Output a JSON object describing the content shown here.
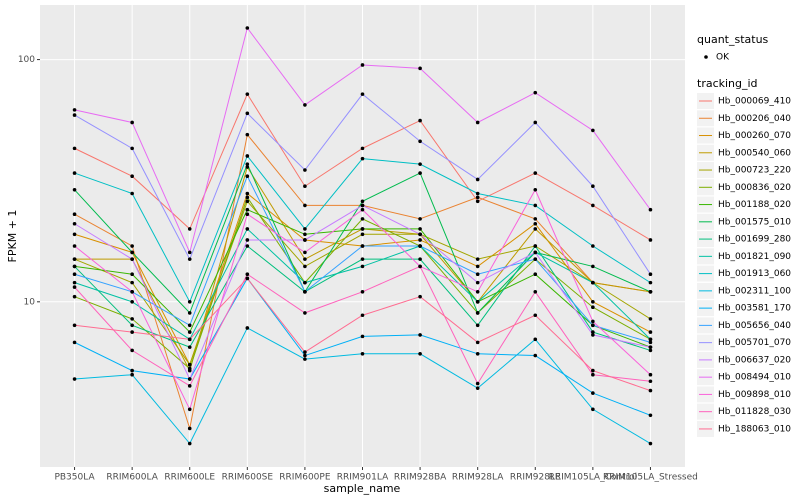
{
  "chart_data": {
    "type": "line",
    "x_label": "sample_name",
    "y_label": "FPKM + 1",
    "log_scale": true,
    "grid": true,
    "point_color": "#000000",
    "categories": [
      "PB350LA",
      "RRIM600LA",
      "RRIM600LE",
      "RRIM600SE",
      "RRIM600PE",
      "RRIM901LA",
      "RRIM928BA",
      "RRIM928LA",
      "RRIM928LE",
      "RRIM105LA_Control",
      "RRIM105LA_Stressed"
    ],
    "ylim": [
      2.08,
      168
    ],
    "yticks": [
      10,
      100
    ],
    "point_legend": {
      "title": "quant_status",
      "labels": [
        "OK"
      ]
    },
    "legend": {
      "title": "tracking_id",
      "position": "right"
    },
    "series": [
      {
        "name": "Hb_000069_410",
        "color": "#F8766D",
        "values": [
          43,
          33,
          20,
          72,
          30,
          43,
          56,
          26,
          34,
          25,
          18
        ]
      },
      {
        "name": "Hb_000206_040",
        "color": "#EA8331",
        "values": [
          23,
          17,
          3.0,
          49,
          25,
          25,
          22,
          27,
          22,
          12,
          11
        ]
      },
      {
        "name": "Hb_000260_070",
        "color": "#D89000",
        "values": [
          19,
          16,
          5.5,
          28,
          18,
          17,
          18,
          14,
          21,
          10,
          7.5
        ]
      },
      {
        "name": "Hb_000540_060",
        "color": "#C09B00",
        "values": [
          15,
          15,
          5.2,
          36,
          15,
          20,
          19,
          10,
          20,
          12,
          11
        ]
      },
      {
        "name": "Hb_000723_220",
        "color": "#A3A500",
        "values": [
          15,
          12,
          5.5,
          26,
          14,
          19,
          19,
          15,
          17,
          12,
          8.5
        ]
      },
      {
        "name": "Hb_000836_020",
        "color": "#7CAE00",
        "values": [
          10.5,
          8.5,
          5.3,
          27,
          12,
          22,
          17,
          9,
          15,
          9.5,
          7
        ]
      },
      {
        "name": "Hb_001188_020",
        "color": "#39B600",
        "values": [
          14,
          13,
          7.5,
          24,
          19,
          20,
          20,
          10,
          13,
          8,
          6.5
        ]
      },
      {
        "name": "Hb_001575_010",
        "color": "#00BB4E",
        "values": [
          29,
          16,
          9,
          37,
          11,
          26,
          34,
          9,
          16,
          14,
          11
        ]
      },
      {
        "name": "Hb_001699_280",
        "color": "#00BF7D",
        "values": [
          14,
          8,
          6.5,
          17,
          11,
          15,
          15,
          8,
          17,
          7.5,
          6.3
        ]
      },
      {
        "name": "Hb_001821_090",
        "color": "#00C1A3",
        "values": [
          12,
          10,
          7,
          20,
          12,
          14,
          17,
          10,
          16,
          12,
          7
        ]
      },
      {
        "name": "Hb_001913_060",
        "color": "#00BFC4",
        "values": [
          34,
          28,
          10,
          40,
          20,
          39,
          37,
          28,
          25,
          17,
          12
        ]
      },
      {
        "name": "Hb_002311_100",
        "color": "#00BAE0",
        "values": [
          4.8,
          5.0,
          2.6,
          7.8,
          5.8,
          6.1,
          6.1,
          4.4,
          7.0,
          3.6,
          2.6
        ]
      },
      {
        "name": "Hb_003581_170",
        "color": "#00B0F6",
        "values": [
          6.8,
          5.2,
          4.8,
          12.5,
          6.0,
          7.2,
          7.3,
          6.1,
          6.0,
          4.2,
          3.4
        ]
      },
      {
        "name": "Hb_005656_040",
        "color": "#35A2FF",
        "values": [
          13,
          11,
          8,
          33,
          11,
          17,
          17,
          13,
          15,
          8,
          6.8
        ]
      },
      {
        "name": "Hb_005701_070",
        "color": "#9590FF",
        "values": [
          59,
          43,
          15,
          60,
          35,
          72,
          46,
          32,
          55,
          30,
          13
        ]
      },
      {
        "name": "Hb_006637_020",
        "color": "#C77CFF",
        "values": [
          21,
          15,
          4.8,
          18,
          18,
          25,
          19,
          12,
          16,
          7.3,
          6.5
        ]
      },
      {
        "name": "Hb_008494_010",
        "color": "#E76BF3",
        "values": [
          62,
          55,
          16,
          135,
          65,
          95,
          92,
          55,
          73,
          51,
          24
        ]
      },
      {
        "name": "Hb_009898_010",
        "color": "#FA62DB",
        "values": [
          17,
          11,
          3.6,
          23,
          16,
          24,
          14,
          11,
          29,
          8.3,
          5.0
        ]
      },
      {
        "name": "Hb_011828_030",
        "color": "#FF62BC",
        "values": [
          11.5,
          6.3,
          4.5,
          13,
          9,
          11,
          14,
          4.6,
          11,
          5.0,
          4.7
        ]
      },
      {
        "name": "Hb_188063_010",
        "color": "#FF6C91",
        "values": [
          8,
          7.5,
          7,
          12.5,
          6.2,
          8.8,
          10.5,
          6.8,
          8.8,
          5.2,
          4.3
        ]
      }
    ]
  }
}
